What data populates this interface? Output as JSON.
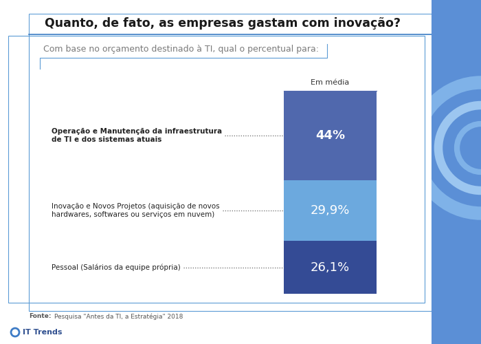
{
  "chart_data": {
    "type": "bar",
    "title": "Quanto, de fato, as empresas gastam com inovação?",
    "subtitle": "Com base no orçamento destinado à TI, qual o percentual para:",
    "source": "Fonte: Pesquisa \"Antes da TI, a Estratégia\" 2018",
    "brand": "IT Trends",
    "stacked": true,
    "data_labels": true,
    "tick_labels": "x",
    "categories": [
      "Em média"
    ],
    "series": [
      {
        "name": "Operação e Manutenção da infraestrutura\nde TI e dos sistemas atuais",
        "color": "#5068AD",
        "values": [
          44
        ],
        "value_labels": [
          "44%"
        ]
      },
      {
        "name": "Inovação e Novos Projetos (aquisição de novos\nhardwares, softwares ou serviços em nuvem)",
        "color": "#6CA9DE",
        "values": [
          29.9
        ],
        "value_labels": [
          "29,9%"
        ]
      },
      {
        "name": "Pessoal (Salários da equipe própria)",
        "color": "#344B95",
        "values": [
          26.1
        ],
        "value_labels": [
          "26,1%"
        ]
      }
    ]
  }
}
